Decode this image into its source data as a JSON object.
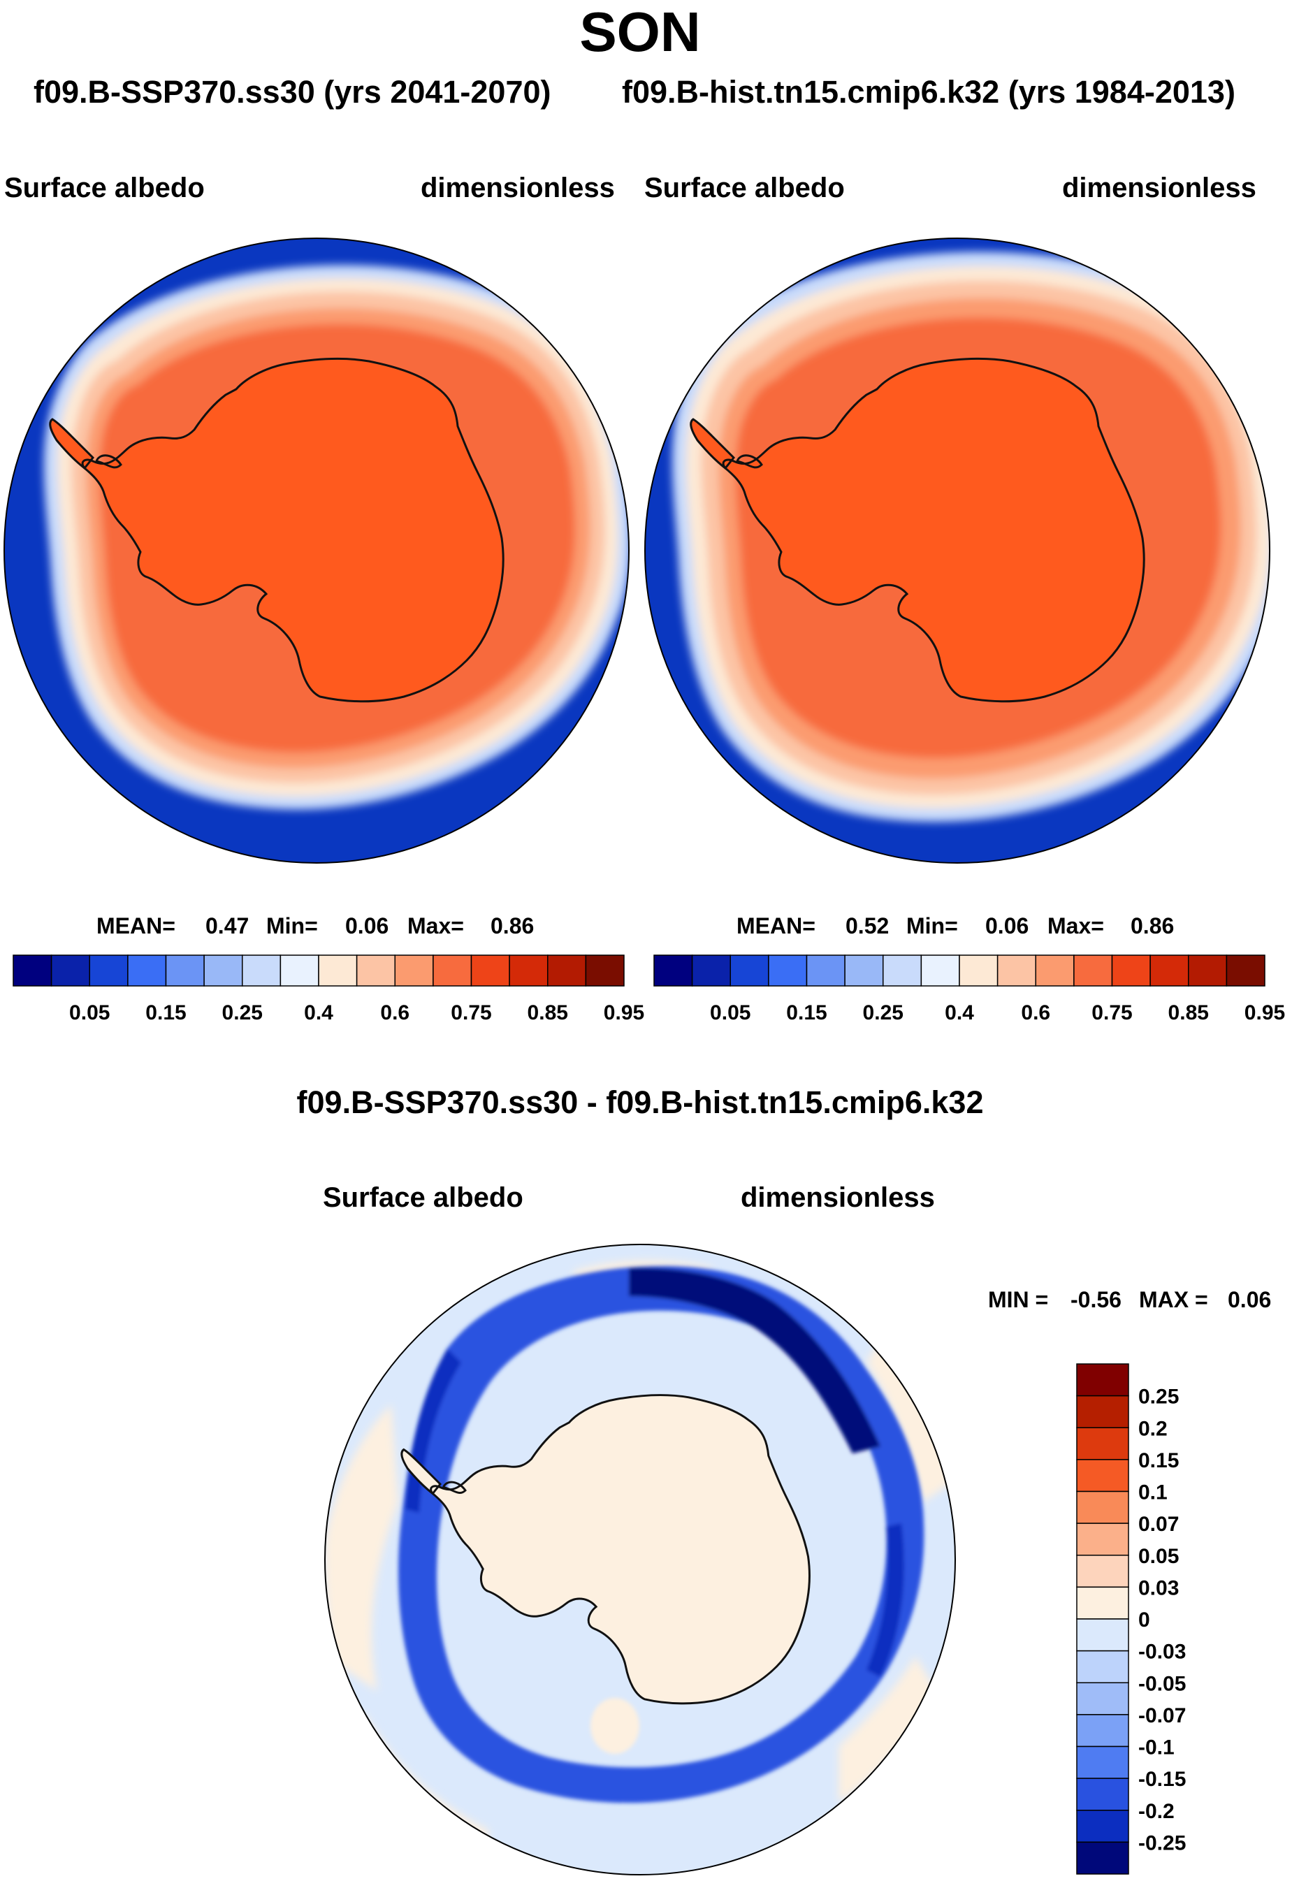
{
  "title": "SON",
  "subtitle_left": "f09.B-SSP370.ss30 (yrs 2041-2070)",
  "subtitle_right": "f09.B-hist.tn15.cmip6.k32 (yrs 1984-2013)",
  "diff_title": "f09.B-SSP370.ss30 - f09.B-hist.tn15.cmip6.k32",
  "colors": {
    "ocean": "#0a37c0",
    "land": "#ff5a1e",
    "coast": "#111111"
  },
  "chart_data": [
    {
      "type": "heatmap",
      "projection": "south-polar-stereographic",
      "variable": "Surface albedo",
      "units": "dimensionless",
      "stats": {
        "mean_label": "MEAN=",
        "mean": "0.47",
        "min_label": "Min=",
        "min": "0.06",
        "max_label": "Max=",
        "max": "0.86"
      },
      "levels": [
        "0.05",
        "0.15",
        "0.25",
        "0.4",
        "0.6",
        "0.75",
        "0.85",
        "0.95"
      ],
      "colorbar": [
        "#00007f",
        "#0a22aa",
        "#1745d6",
        "#3a6ef5",
        "#6b94f5",
        "#99b8f7",
        "#c9dbfb",
        "#e9f2fe",
        "#fde9d5",
        "#fcc4a5",
        "#fb9b6f",
        "#f76b3e",
        "#ee4418",
        "#d42a08",
        "#b31b02",
        "#7a0d00"
      ]
    },
    {
      "type": "heatmap",
      "projection": "south-polar-stereographic",
      "variable": "Surface albedo",
      "units": "dimensionless",
      "stats": {
        "mean_label": "MEAN=",
        "mean": "0.52",
        "min_label": "Min=",
        "min": "0.06",
        "max_label": "Max=",
        "max": "0.86"
      },
      "levels": [
        "0.05",
        "0.15",
        "0.25",
        "0.4",
        "0.6",
        "0.75",
        "0.85",
        "0.95"
      ],
      "colorbar": [
        "#00007f",
        "#0a22aa",
        "#1745d6",
        "#3a6ef5",
        "#6b94f5",
        "#99b8f7",
        "#c9dbfb",
        "#e9f2fe",
        "#fde9d5",
        "#fcc4a5",
        "#fb9b6f",
        "#f76b3e",
        "#ee4418",
        "#d42a08",
        "#b31b02",
        "#7a0d00"
      ]
    },
    {
      "type": "heatmap",
      "projection": "south-polar-stereographic",
      "variable": "Surface albedo",
      "units": "dimensionless",
      "stats": {
        "min_label": "MIN =",
        "min": "-0.56",
        "max_label": "MAX =",
        "max": "0.06"
      },
      "levels": [
        "0.25",
        "0.2",
        "0.15",
        "0.1",
        "0.07",
        "0.05",
        "0.03",
        "0",
        "-0.03",
        "-0.05",
        "-0.07",
        "-0.1",
        "-0.15",
        "-0.2",
        "-0.25"
      ],
      "colorbar": [
        "#800000",
        "#b51f00",
        "#dd3a0e",
        "#f55a25",
        "#f98a58",
        "#fbb08a",
        "#fdd4bc",
        "#fdf0e0",
        "#dbe9fc",
        "#bdd3fb",
        "#9fbcf8",
        "#7ba1f6",
        "#4f7cf2",
        "#2952e0",
        "#0c2ec0",
        "#00087a"
      ]
    }
  ]
}
